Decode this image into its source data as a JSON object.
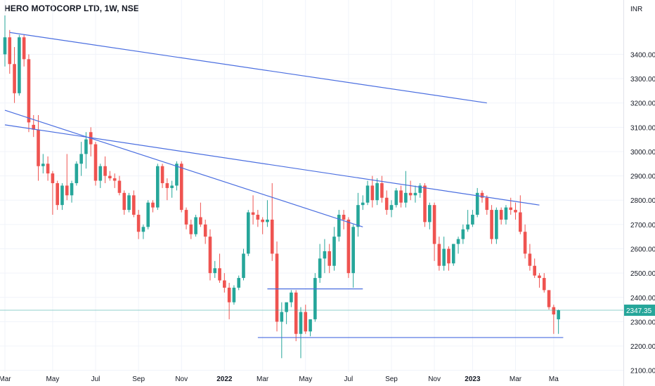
{
  "chart_data": {
    "type": "candlestick",
    "title": "HERO MOTOCORP LTD, 1W, NSE",
    "currency": "INR",
    "last_price": "2347.35",
    "ylim": [
      2050,
      3560
    ],
    "y_ticks": [
      2100,
      2200,
      2300,
      2400,
      2500,
      2600,
      2700,
      2800,
      2900,
      3000,
      3100,
      3200,
      3300,
      3400
    ],
    "y_tick_labels": [
      "2100.00",
      "2200.00",
      "2300.00",
      "2400.00",
      "2500.00",
      "2600.00",
      "2700.00",
      "2800.00",
      "2900.00",
      "3000.00",
      "3100.00",
      "3200.00",
      "3300.00",
      "3400.00"
    ],
    "x_ticks": [
      {
        "label": "Mar",
        "index": 0,
        "year": false
      },
      {
        "label": "May",
        "index": 10,
        "year": false
      },
      {
        "label": "Jul",
        "index": 19,
        "year": false
      },
      {
        "label": "Sep",
        "index": 28,
        "year": false
      },
      {
        "label": "Nov",
        "index": 37,
        "year": false
      },
      {
        "label": "2022",
        "index": 46,
        "year": true
      },
      {
        "label": "Mar",
        "index": 54,
        "year": false
      },
      {
        "label": "May",
        "index": 63,
        "year": false
      },
      {
        "label": "Jul",
        "index": 72,
        "year": false
      },
      {
        "label": "Sep",
        "index": 81,
        "year": false
      },
      {
        "label": "Nov",
        "index": 90,
        "year": false
      },
      {
        "label": "2023",
        "index": 98,
        "year": true
      },
      {
        "label": "Mar",
        "index": 107,
        "year": false
      },
      {
        "label": "Ma",
        "index": 115,
        "year": false
      }
    ],
    "candles": [
      [
        3400,
        3560,
        3350,
        3470
      ],
      [
        3470,
        3500,
        3320,
        3360
      ],
      [
        3360,
        3430,
        3200,
        3240
      ],
      [
        3240,
        3480,
        3230,
        3470
      ],
      [
        3470,
        3480,
        3350,
        3380
      ],
      [
        3380,
        3400,
        3080,
        3120
      ],
      [
        3110,
        3150,
        3060,
        3090
      ],
      [
        3090,
        3150,
        2880,
        2940
      ],
      [
        2940,
        2990,
        2910,
        2950
      ],
      [
        2950,
        2980,
        2880,
        2910
      ],
      [
        2910,
        2920,
        2740,
        2870
      ],
      [
        2870,
        2880,
        2760,
        2780
      ],
      [
        2780,
        2870,
        2760,
        2860
      ],
      [
        2860,
        2990,
        2800,
        2820
      ],
      [
        2820,
        2880,
        2790,
        2870
      ],
      [
        2870,
        2960,
        2860,
        2950
      ],
      [
        2950,
        3040,
        2900,
        2990
      ],
      [
        2990,
        3080,
        2930,
        3050
      ],
      [
        3080,
        3100,
        2980,
        3030
      ],
      [
        3030,
        3040,
        2860,
        2880
      ],
      [
        2880,
        2950,
        2850,
        2940
      ],
      [
        2940,
        2980,
        2870,
        2900
      ],
      [
        2900,
        2920,
        2880,
        2890
      ],
      [
        2890,
        2910,
        2850,
        2880
      ],
      [
        2880,
        2900,
        2820,
        2830
      ],
      [
        2830,
        2840,
        2740,
        2760
      ],
      [
        2760,
        2830,
        2750,
        2820
      ],
      [
        2820,
        2840,
        2730,
        2740
      ],
      [
        2740,
        2760,
        2640,
        2670
      ],
      [
        2670,
        2700,
        2640,
        2690
      ],
      [
        2690,
        2800,
        2680,
        2790
      ],
      [
        2790,
        2800,
        2750,
        2770
      ],
      [
        2770,
        2950,
        2760,
        2940
      ],
      [
        2940,
        2950,
        2850,
        2870
      ],
      [
        2870,
        2890,
        2800,
        2850
      ],
      [
        2850,
        2880,
        2810,
        2860
      ],
      [
        2860,
        2960,
        2840,
        2950
      ],
      [
        2950,
        2960,
        2750,
        2760
      ],
      [
        2760,
        2770,
        2680,
        2700
      ],
      [
        2700,
        2720,
        2640,
        2660
      ],
      [
        2660,
        2740,
        2650,
        2730
      ],
      [
        2730,
        2790,
        2690,
        2700
      ],
      [
        2700,
        2720,
        2620,
        2650
      ],
      [
        2650,
        2680,
        2470,
        2500
      ],
      [
        2500,
        2550,
        2480,
        2520
      ],
      [
        2520,
        2580,
        2460,
        2470
      ],
      [
        2470,
        2500,
        2420,
        2440
      ],
      [
        2440,
        2460,
        2310,
        2380
      ],
      [
        2380,
        2450,
        2370,
        2440
      ],
      [
        2440,
        2490,
        2430,
        2480
      ],
      [
        2480,
        2600,
        2470,
        2580
      ],
      [
        2580,
        2760,
        2570,
        2750
      ],
      [
        2750,
        2820,
        2700,
        2740
      ],
      [
        2740,
        2760,
        2690,
        2720
      ],
      [
        2720,
        2730,
        2660,
        2710
      ],
      [
        2710,
        2800,
        2690,
        2720
      ],
      [
        2720,
        2870,
        2550,
        2580
      ],
      [
        2580,
        2630,
        2260,
        2300
      ],
      [
        2300,
        2380,
        2150,
        2340
      ],
      [
        2340,
        2370,
        2290,
        2380
      ],
      [
        2380,
        2430,
        2360,
        2420
      ],
      [
        2420,
        2430,
        2220,
        2250
      ],
      [
        2250,
        2360,
        2150,
        2340
      ],
      [
        2340,
        2370,
        2250,
        2260
      ],
      [
        2260,
        2310,
        2240,
        2310
      ],
      [
        2310,
        2500,
        2300,
        2480
      ],
      [
        2480,
        2620,
        2460,
        2560
      ],
      [
        2560,
        2640,
        2500,
        2590
      ],
      [
        2590,
        2620,
        2500,
        2530
      ],
      [
        2530,
        2690,
        2510,
        2650
      ],
      [
        2650,
        2760,
        2630,
        2740
      ],
      [
        2740,
        2760,
        2680,
        2720
      ],
      [
        2720,
        2730,
        2480,
        2500
      ],
      [
        2500,
        2700,
        2440,
        2690
      ],
      [
        2690,
        2830,
        2650,
        2780
      ],
      [
        2780,
        2820,
        2760,
        2790
      ],
      [
        2790,
        2880,
        2780,
        2860
      ],
      [
        2860,
        2900,
        2770,
        2800
      ],
      [
        2800,
        2890,
        2780,
        2870
      ],
      [
        2870,
        2900,
        2790,
        2810
      ],
      [
        2810,
        2840,
        2740,
        2760
      ],
      [
        2760,
        2800,
        2730,
        2780
      ],
      [
        2780,
        2850,
        2770,
        2840
      ],
      [
        2840,
        2860,
        2770,
        2790
      ],
      [
        2790,
        2920,
        2770,
        2830
      ],
      [
        2830,
        2880,
        2800,
        2820
      ],
      [
        2820,
        2860,
        2790,
        2830
      ],
      [
        2830,
        2870,
        2810,
        2860
      ],
      [
        2860,
        2870,
        2690,
        2710
      ],
      [
        2710,
        2790,
        2680,
        2780
      ],
      [
        2780,
        2790,
        2550,
        2620
      ],
      [
        2620,
        2650,
        2510,
        2530
      ],
      [
        2530,
        2650,
        2510,
        2600
      ],
      [
        2600,
        2610,
        2510,
        2540
      ],
      [
        2540,
        2620,
        2530,
        2620
      ],
      [
        2620,
        2650,
        2580,
        2640
      ],
      [
        2640,
        2700,
        2620,
        2680
      ],
      [
        2680,
        2760,
        2670,
        2700
      ],
      [
        2700,
        2760,
        2690,
        2740
      ],
      [
        2740,
        2850,
        2730,
        2830
      ],
      [
        2830,
        2840,
        2790,
        2810
      ],
      [
        2810,
        2820,
        2740,
        2760
      ],
      [
        2760,
        2780,
        2620,
        2640
      ],
      [
        2640,
        2770,
        2620,
        2760
      ],
      [
        2760,
        2770,
        2700,
        2720
      ],
      [
        2720,
        2780,
        2700,
        2770
      ],
      [
        2770,
        2810,
        2740,
        2760
      ],
      [
        2760,
        2790,
        2720,
        2750
      ],
      [
        2750,
        2820,
        2660,
        2670
      ],
      [
        2670,
        2700,
        2560,
        2580
      ],
      [
        2580,
        2620,
        2510,
        2530
      ],
      [
        2530,
        2560,
        2480,
        2490
      ],
      [
        2490,
        2500,
        2440,
        2480
      ],
      [
        2480,
        2500,
        2420,
        2430
      ],
      [
        2430,
        2430,
        2350,
        2360
      ],
      [
        2360,
        2370,
        2250,
        2330
      ],
      [
        2310,
        2350,
        2250,
        2347.35
      ]
    ],
    "trendlines": [
      {
        "from": [
          1,
          3490
        ],
        "to": [
          101,
          3200
        ]
      },
      {
        "from": [
          0,
          3170
        ],
        "to": [
          75,
          2690
        ]
      },
      {
        "from": [
          0,
          3110
        ],
        "to": [
          112,
          2780
        ]
      },
      {
        "from": [
          55,
          2435
        ],
        "to": [
          75,
          2435
        ]
      },
      {
        "from": [
          53,
          2235
        ],
        "to": [
          117,
          2235
        ]
      }
    ],
    "colors": {
      "up": "#26a69a",
      "down": "#ef5350",
      "trendline": "#4a6ee0",
      "last_price_line": "#26a69a",
      "grid": "#f0f3fa",
      "text": "#131722"
    },
    "grid": true
  }
}
